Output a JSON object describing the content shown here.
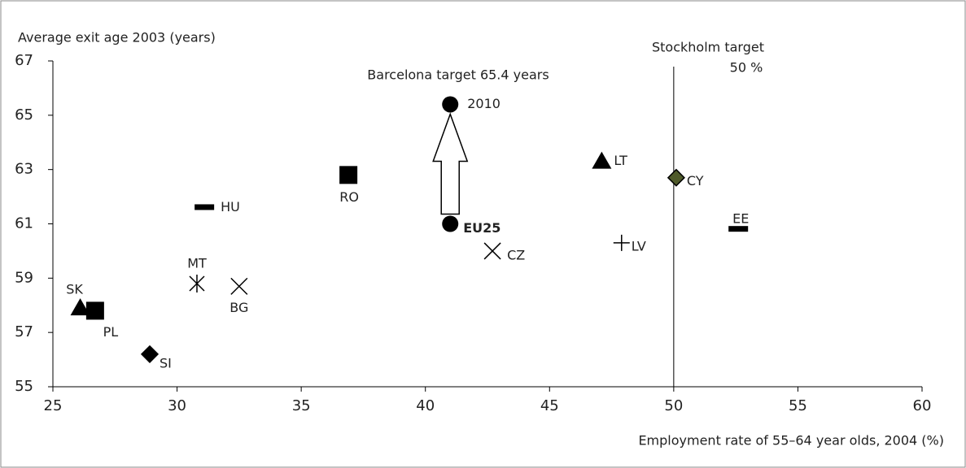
{
  "chart_data": {
    "type": "scatter",
    "y_axis_label": "Average exit age 2003 (years)",
    "x_axis_label": "Employment rate of 55–64 year olds, 2004 (%)",
    "xlim": [
      25,
      60
    ],
    "xticks": [
      25,
      30,
      35,
      40,
      45,
      50,
      55,
      60
    ],
    "ylim": [
      55,
      67
    ],
    "yticks": [
      55,
      57,
      59,
      61,
      63,
      65,
      67
    ],
    "color": "#000000",
    "points": [
      {
        "label": "SK",
        "marker": "triangle",
        "x": 26.1,
        "y": 57.9
      },
      {
        "label": "PL",
        "marker": "square",
        "x": 26.7,
        "y": 57.8
      },
      {
        "label": "SI",
        "marker": "diamond",
        "x": 28.9,
        "y": 56.2
      },
      {
        "label": "MT",
        "marker": "asterisk",
        "x": 30.8,
        "y": 58.8
      },
      {
        "label": "BG",
        "marker": "cross",
        "x": 32.5,
        "y": 58.7
      },
      {
        "label": "HU",
        "marker": "dash",
        "x": 31.1,
        "y": 61.6
      },
      {
        "label": "RO",
        "marker": "square",
        "x": 36.9,
        "y": 62.8
      },
      {
        "label": "EU25",
        "marker": "circle",
        "x": 41.0,
        "y": 61.0
      },
      {
        "label": "2010",
        "marker": "circle",
        "x": 41.0,
        "y": 65.4
      },
      {
        "label": "CZ",
        "marker": "cross",
        "x": 42.7,
        "y": 60.0
      },
      {
        "label": "LT",
        "marker": "triangle",
        "x": 47.1,
        "y": 63.3
      },
      {
        "label": "LV",
        "marker": "plus",
        "x": 47.9,
        "y": 60.3
      },
      {
        "label": "CY",
        "marker": "diamond",
        "x": 50.1,
        "y": 62.7,
        "color": "#4f5a2a"
      },
      {
        "label": "EE",
        "marker": "dash",
        "x": 52.6,
        "y": 60.8
      }
    ],
    "barcelona_target": "Barcelona target 65.4 years",
    "stockholm_target": {
      "label": [
        "Stockholm target",
        "50 %"
      ],
      "x": 50
    }
  }
}
